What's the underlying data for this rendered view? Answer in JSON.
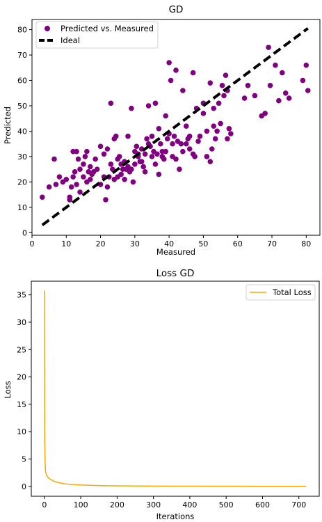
{
  "chart_data": [
    {
      "type": "scatter",
      "title": "GD",
      "xlabel": "Measured",
      "ylabel": "Predicted",
      "xlim": [
        0,
        84
      ],
      "ylim": [
        -1,
        84
      ],
      "xticks": [
        "0",
        "10",
        "20",
        "30",
        "40",
        "50",
        "60",
        "70",
        "80"
      ],
      "yticks": [
        "0",
        "10",
        "20",
        "30",
        "40",
        "50",
        "60",
        "70",
        "80"
      ],
      "legend": {
        "placement": "top-left",
        "entries": [
          "Predicted vs. Measured",
          "Ideal"
        ]
      },
      "colors": {
        "points": "#800080",
        "ideal": "#000000"
      },
      "series": [
        {
          "name": "Predicted vs. Measured",
          "points": [
            [
              3,
              14
            ],
            [
              5,
              18
            ],
            [
              6.5,
              29
            ],
            [
              7,
              19
            ],
            [
              8,
              22
            ],
            [
              9,
              20
            ],
            [
              10,
              21
            ],
            [
              11,
              14
            ],
            [
              11,
              13
            ],
            [
              11.5,
              18
            ],
            [
              12,
              32
            ],
            [
              12,
              22
            ],
            [
              12.5,
              24
            ],
            [
              13,
              19
            ],
            [
              13,
              32
            ],
            [
              13.5,
              29
            ],
            [
              14,
              25
            ],
            [
              14,
              16
            ],
            [
              15,
              27
            ],
            [
              15,
              22
            ],
            [
              15.5,
              30
            ],
            [
              16,
              32
            ],
            [
              16,
              20
            ],
            [
              16.5,
              24
            ],
            [
              17,
              26
            ],
            [
              17,
              21
            ],
            [
              17.5,
              23
            ],
            [
              18,
              24
            ],
            [
              18.5,
              29
            ],
            [
              19,
              25
            ],
            [
              20,
              19
            ],
            [
              20,
              34
            ],
            [
              21,
              31
            ],
            [
              21,
              22
            ],
            [
              21.5,
              13
            ],
            [
              22,
              18
            ],
            [
              22,
              33
            ],
            [
              22.5,
              22
            ],
            [
              23,
              51
            ],
            [
              23,
              27
            ],
            [
              23.5,
              25
            ],
            [
              24,
              21
            ],
            [
              24,
              37
            ],
            [
              24.5,
              38
            ],
            [
              25,
              22
            ],
            [
              25,
              29
            ],
            [
              25.5,
              30
            ],
            [
              26,
              27
            ],
            [
              26,
              23
            ],
            [
              26.5,
              25
            ],
            [
              27,
              21
            ],
            [
              27,
              28
            ],
            [
              27.5,
              25
            ],
            [
              28,
              26
            ],
            [
              28,
              38
            ],
            [
              28.5,
              24
            ],
            [
              29,
              25
            ],
            [
              29,
              49
            ],
            [
              29.5,
              20
            ],
            [
              30,
              32
            ],
            [
              30,
              27
            ],
            [
              30.5,
              34
            ],
            [
              31,
              30
            ],
            [
              31,
              31
            ],
            [
              31.5,
              28
            ],
            [
              32,
              33
            ],
            [
              32,
              28
            ],
            [
              32.5,
              26
            ],
            [
              33,
              24
            ],
            [
              33,
              31
            ],
            [
              33.5,
              37
            ],
            [
              34,
              35
            ],
            [
              34,
              50
            ],
            [
              34.5,
              34
            ],
            [
              35,
              38
            ],
            [
              35,
              30
            ],
            [
              35.5,
              32
            ],
            [
              36,
              51
            ],
            [
              36,
              27
            ],
            [
              36.5,
              31
            ],
            [
              37,
              41
            ],
            [
              37,
              23
            ],
            [
              37.5,
              35
            ],
            [
              38,
              32
            ],
            [
              38,
              30
            ],
            [
              38.5,
              29
            ],
            [
              39,
              46
            ],
            [
              39,
              32
            ],
            [
              39.5,
              37
            ],
            [
              40,
              39
            ],
            [
              40,
              67
            ],
            [
              40.5,
              60
            ],
            [
              41,
              35
            ],
            [
              41,
              30
            ],
            [
              41.5,
              38
            ],
            [
              42,
              29
            ],
            [
              42,
              64
            ],
            [
              42.5,
              36
            ],
            [
              43,
              25
            ],
            [
              43.5,
              35
            ],
            [
              44,
              56
            ],
            [
              44,
              32
            ],
            [
              45,
              42
            ],
            [
              45,
              35
            ],
            [
              45.5,
              37
            ],
            [
              46,
              33
            ],
            [
              46,
              38
            ],
            [
              47,
              63
            ],
            [
              47,
              31
            ],
            [
              47.5,
              30
            ],
            [
              48,
              49
            ],
            [
              48.5,
              36
            ],
            [
              49,
              38
            ],
            [
              50,
              51
            ],
            [
              50,
              47
            ],
            [
              51,
              40
            ],
            [
              51,
              30
            ],
            [
              52,
              59
            ],
            [
              52,
              28
            ],
            [
              52.5,
              33
            ],
            [
              53,
              42
            ],
            [
              53,
              49
            ],
            [
              53.5,
              37
            ],
            [
              54,
              40
            ],
            [
              54.5,
              51
            ],
            [
              55,
              43
            ],
            [
              55.5,
              58
            ],
            [
              56,
              54
            ],
            [
              56.5,
              62
            ],
            [
              57,
              37
            ],
            [
              57,
              56
            ],
            [
              57.5,
              41
            ],
            [
              58,
              39
            ],
            [
              62,
              53
            ],
            [
              63,
              58
            ],
            [
              65,
              54
            ],
            [
              67,
              46
            ],
            [
              68,
              47
            ],
            [
              69,
              73
            ],
            [
              69.5,
              58
            ],
            [
              71,
              66
            ],
            [
              72,
              52
            ],
            [
              73,
              63
            ],
            [
              74,
              55
            ],
            [
              75,
              53
            ],
            [
              79,
              60
            ],
            [
              80,
              66
            ],
            [
              80.5,
              56
            ]
          ]
        },
        {
          "name": "Ideal",
          "points": [
            [
              3,
              3
            ],
            [
              80.5,
              80.5
            ]
          ]
        }
      ]
    },
    {
      "type": "line",
      "title": "Loss GD",
      "xlabel": "Iterations",
      "ylabel": "Loss",
      "xlim": [
        -36,
        756
      ],
      "ylim": [
        -1.8,
        37.5
      ],
      "xticks": [
        "0",
        "100",
        "200",
        "300",
        "400",
        "500",
        "600",
        "700"
      ],
      "yticks": [
        "0",
        "5",
        "10",
        "15",
        "20",
        "25",
        "30",
        "35"
      ],
      "legend": {
        "placement": "top-right",
        "entries": [
          "Total Loss"
        ]
      },
      "colors": {
        "line": "#FFA500"
      },
      "series": [
        {
          "name": "Total Loss",
          "x": [
            0,
            0.5,
            1,
            2,
            3,
            5,
            8,
            12,
            20,
            30,
            45,
            60,
            80,
            100,
            130,
            170,
            220,
            300,
            400,
            500,
            600,
            720
          ],
          "y": [
            35.8,
            20,
            8,
            4.5,
            2.8,
            2.2,
            1.8,
            1.5,
            1.15,
            0.85,
            0.6,
            0.45,
            0.33,
            0.25,
            0.18,
            0.13,
            0.09,
            0.06,
            0.04,
            0.03,
            0.02,
            0.015
          ]
        }
      ]
    }
  ]
}
